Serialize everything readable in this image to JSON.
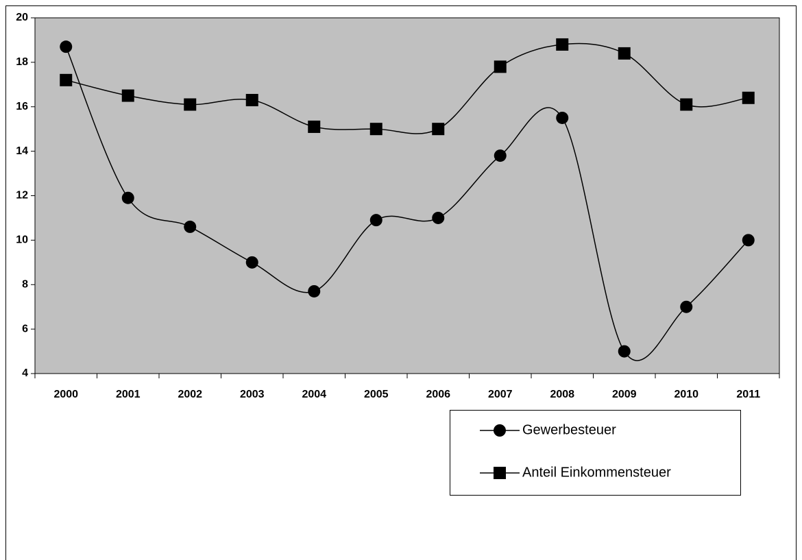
{
  "chart_data": {
    "type": "line",
    "categories": [
      "2000",
      "2001",
      "2002",
      "2003",
      "2004",
      "2005",
      "2006",
      "2007",
      "2008",
      "2009",
      "2010",
      "2011"
    ],
    "series": [
      {
        "name": "Gewerbesteuer",
        "color": "#000000",
        "marker": "circle",
        "values": [
          18.7,
          11.9,
          10.6,
          9.0,
          7.7,
          10.9,
          11.0,
          13.8,
          15.5,
          5.0,
          7.0,
          10.0
        ]
      },
      {
        "name": "Anteil Einkommensteuer",
        "color": "#000000",
        "marker": "square",
        "values": [
          17.2,
          16.5,
          16.1,
          16.3,
          15.1,
          15.0,
          15.0,
          17.8,
          18.8,
          18.4,
          16.1,
          16.4
        ]
      }
    ],
    "ylim": [
      4,
      20
    ],
    "yticks": [
      4,
      6,
      8,
      10,
      12,
      14,
      16,
      18,
      20
    ],
    "grid": false,
    "smooth": true,
    "plot_background": "#c0c0c0"
  }
}
